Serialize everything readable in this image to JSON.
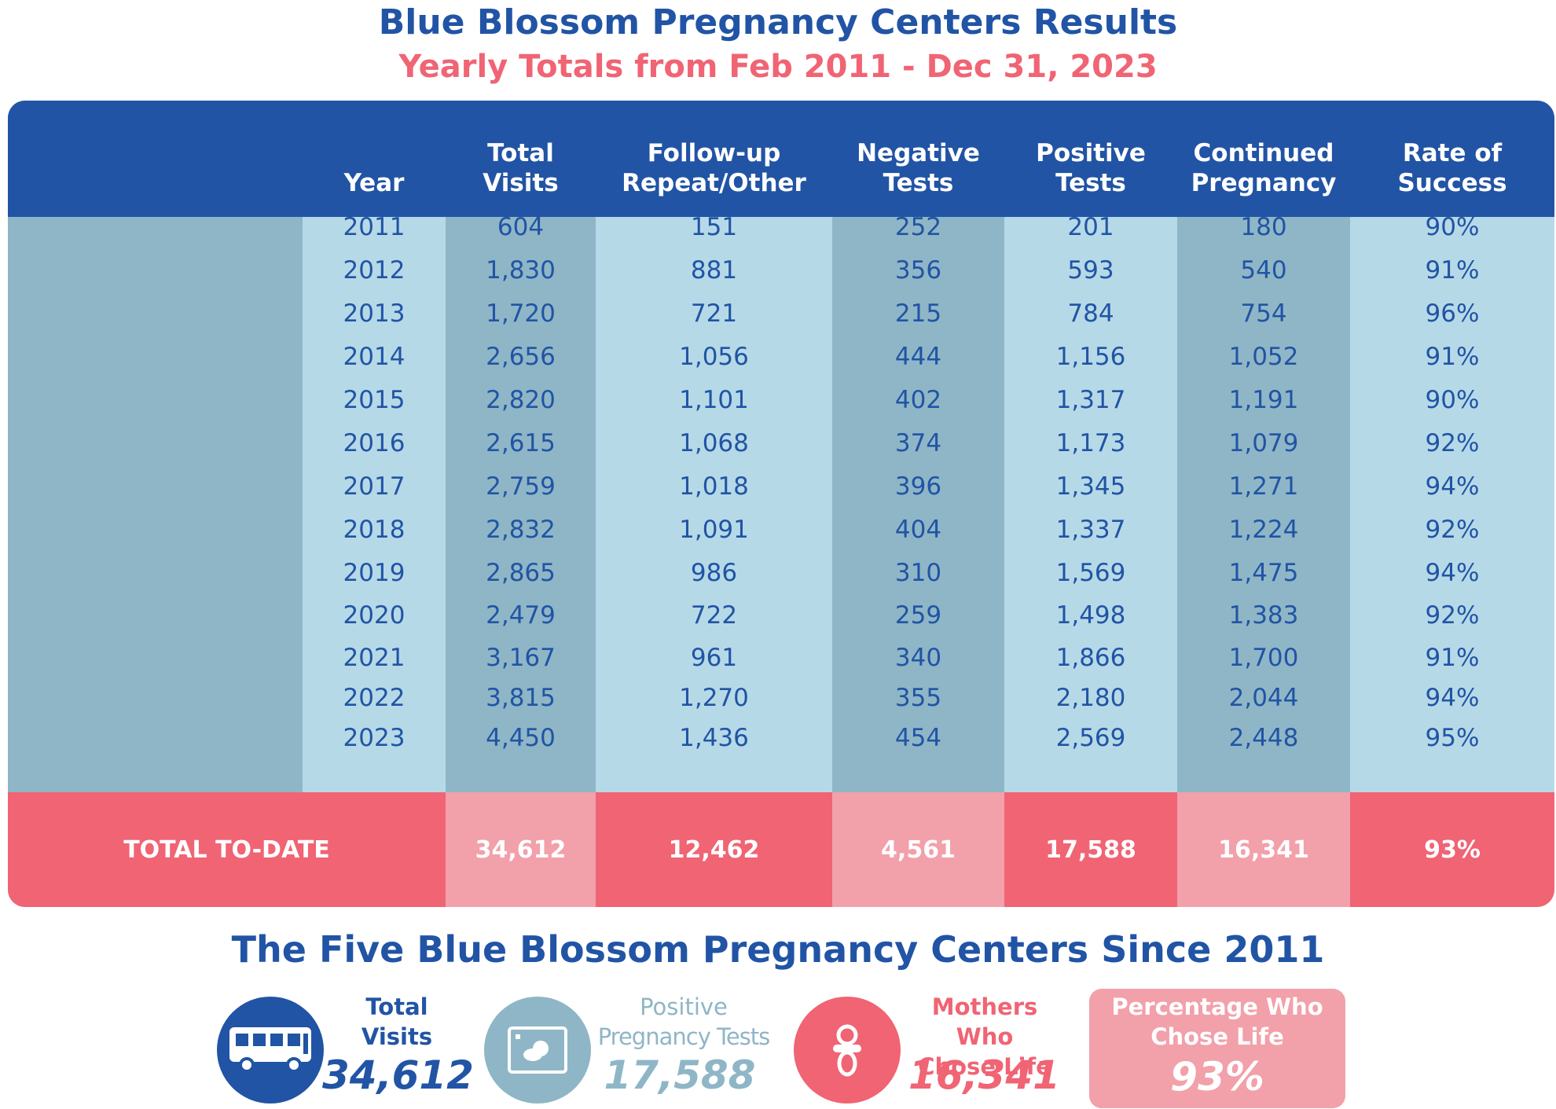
{
  "title": "Blue Blossom Pregnancy Centers Results",
  "subtitle": "Yearly Totals from Feb 2011 - Dec 31, 2023",
  "colors": {
    "blue": "#2154a5",
    "light_blue": "#b6d9e7",
    "mid_blue": "#8fb6c6",
    "coral": "#f06474",
    "light_coral": "#f2a0aa"
  },
  "table": {
    "headers": [
      [
        "Year"
      ],
      [
        "Total",
        "Visits"
      ],
      [
        "Follow-up",
        "Repeat/Other"
      ],
      [
        "Negative",
        "Tests"
      ],
      [
        "Positive",
        "Tests"
      ],
      [
        "Continued",
        "Pregnancy"
      ],
      [
        "Rate of",
        "Success"
      ]
    ],
    "rows": [
      [
        "2011",
        "604",
        "151",
        "252",
        "201",
        "180",
        "90%"
      ],
      [
        "2012",
        "1,830",
        "881",
        "356",
        "593",
        "540",
        "91%"
      ],
      [
        "2013",
        "1,720",
        "721",
        "215",
        "784",
        "754",
        "96%"
      ],
      [
        "2014",
        "2,656",
        "1,056",
        "444",
        "1,156",
        "1,052",
        "91%"
      ],
      [
        "2015",
        "2,820",
        "1,101",
        "402",
        "1,317",
        "1,191",
        "90%"
      ],
      [
        "2016",
        "2,615",
        "1,068",
        "374",
        "1,173",
        "1,079",
        "92%"
      ],
      [
        "2017",
        "2,759",
        "1,018",
        "396",
        "1,345",
        "1,271",
        "94%"
      ],
      [
        "2018",
        "2,832",
        "1,091",
        "404",
        "1,337",
        "1,224",
        "92%"
      ],
      [
        "2019",
        "2,865",
        "986",
        "310",
        "1,569",
        "1,475",
        "94%"
      ],
      [
        "2020",
        "2,479",
        "722",
        "259",
        "1,498",
        "1,383",
        "92%"
      ],
      [
        "2021",
        "3,167",
        "961",
        "340",
        "1,866",
        "1,700",
        "91%"
      ],
      [
        "2022",
        "3,815",
        "1,270",
        "355",
        "2,180",
        "2,044",
        "94%"
      ],
      [
        "2023",
        "4,450",
        "1,436",
        "454",
        "2,569",
        "2,448",
        "95%"
      ]
    ],
    "total_label": "TOTAL TO-DATE",
    "totals": [
      "34,612",
      "12,462",
      "4,561",
      "17,588",
      "16,341",
      "93%"
    ]
  },
  "summary": {
    "title": "The Five Blue Blossom Pregnancy Centers Since 2011",
    "stats": [
      {
        "icon": "bus-icon",
        "label": [
          "Total",
          "Visits"
        ],
        "value": "34,612"
      },
      {
        "icon": "ultrasound-icon",
        "label": [
          "Positive",
          "Pregnancy Tests"
        ],
        "value": "17,588"
      },
      {
        "icon": "pacifier-icon",
        "label": [
          "Mothers Who",
          "Chose Life"
        ],
        "value": "16,341"
      },
      {
        "label": [
          "Percentage Who",
          "Chose Life"
        ],
        "value": "93%"
      }
    ]
  }
}
